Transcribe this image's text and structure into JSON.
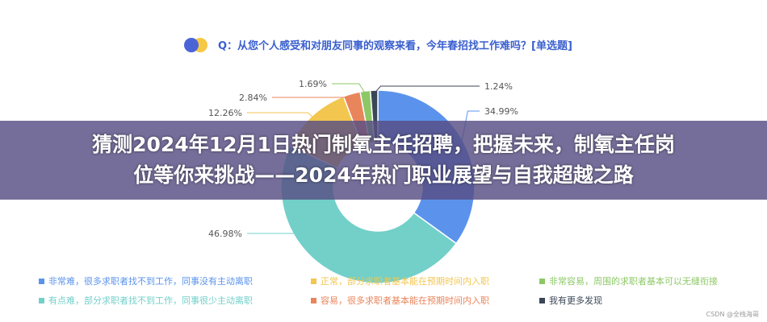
{
  "question": "Q：从您个人感受和对朋友同事的观察来看，今年春招找工作难吗？[单选题]",
  "banner": {
    "line1": "猜测2024年12月1日热门制氧主任招聘，把握未来，制氧主任岗",
    "line2": "位等你来挑战——2024年热门职业展望与自我超越之路"
  },
  "chart_data": {
    "type": "pie",
    "donut": true,
    "start": "top",
    "direction": "clockwise",
    "legend_position": "bottom",
    "series": [
      {
        "name": "非常难，很多求职者找不到工作，同事没有主动离职",
        "value": 34.99,
        "label": "34.99%",
        "color": "#5b93ec"
      },
      {
        "name": "有点难，部分求职者找不到工作，同事很少主动离职",
        "value": 46.98,
        "label": "46.98%",
        "color": "#72d0c9"
      },
      {
        "name": "正常，部分求职者基本能在预期时间内入职",
        "value": 12.26,
        "label": "12.26%",
        "color": "#f2c64f"
      },
      {
        "name": "容易，很多求职者基本能在预期时间内入职",
        "value": 2.84,
        "label": "2.84%",
        "color": "#e9855b"
      },
      {
        "name": "非常容易，周围的求职者基本可以无缝衔接",
        "value": 1.69,
        "label": "1.69%",
        "color": "#8dc866"
      },
      {
        "name": "我有更多发现",
        "value": 1.24,
        "label": "1.24%",
        "color": "#3b4757"
      }
    ]
  },
  "watermark": "CSDN @全栈海哥"
}
